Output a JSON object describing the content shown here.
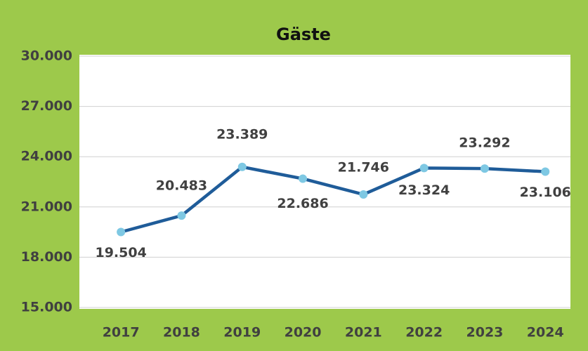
{
  "chart_data": {
    "type": "line",
    "title": "Gäste",
    "categories": [
      "2017",
      "2018",
      "2019",
      "2020",
      "2021",
      "2022",
      "2023",
      "2024"
    ],
    "series": [
      {
        "name": "Gäste",
        "color": "#1f5c99",
        "marker_color": "#7ec8e3",
        "values": [
          19504,
          20483,
          23389,
          22686,
          21746,
          23324,
          23292,
          23106
        ],
        "value_labels": [
          "19.504",
          "20.483",
          "23.389",
          "22.686",
          "21.746",
          "23.324",
          "23.292",
          "23.106"
        ]
      }
    ],
    "ylim": [
      15000,
      30000
    ],
    "yticks": [
      {
        "value": 15000,
        "label": "15.000"
      },
      {
        "value": 18000,
        "label": "18.000"
      },
      {
        "value": 21000,
        "label": "21.000"
      },
      {
        "value": 24000,
        "label": "24.000"
      },
      {
        "value": 27000,
        "label": "27.000"
      },
      {
        "value": 30000,
        "label": "30.000"
      }
    ],
    "grid": true
  }
}
